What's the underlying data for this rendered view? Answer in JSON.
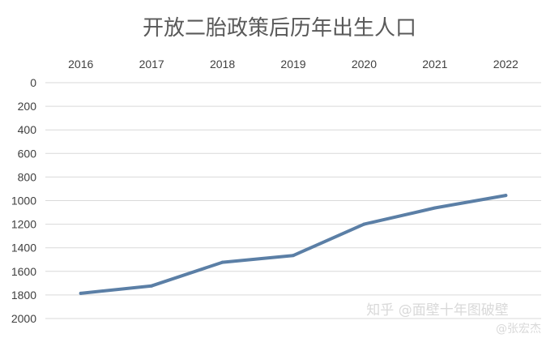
{
  "chart_data": {
    "type": "line",
    "title": "开放二胎政策后历年出生人口",
    "x": [
      "2016",
      "2017",
      "2018",
      "2019",
      "2020",
      "2021",
      "2022"
    ],
    "series": [
      {
        "values": [
          1786,
          1723,
          1523,
          1465,
          1200,
          1062,
          956
        ]
      }
    ],
    "y_ticks": [
      "0",
      "200",
      "400",
      "600",
      "800",
      "1000",
      "1200",
      "1400",
      "1600",
      "1800",
      "2000"
    ],
    "ylim": [
      0,
      2000
    ],
    "y_axis_inverted": true,
    "x_axis_position": "top",
    "grid": true,
    "line_color": "#5b7fa6",
    "grid_color": "#d9d9d9"
  },
  "watermark": {
    "zhihu": "知乎 @面壁十年图破壁",
    "weibo": "@张宏杰"
  }
}
